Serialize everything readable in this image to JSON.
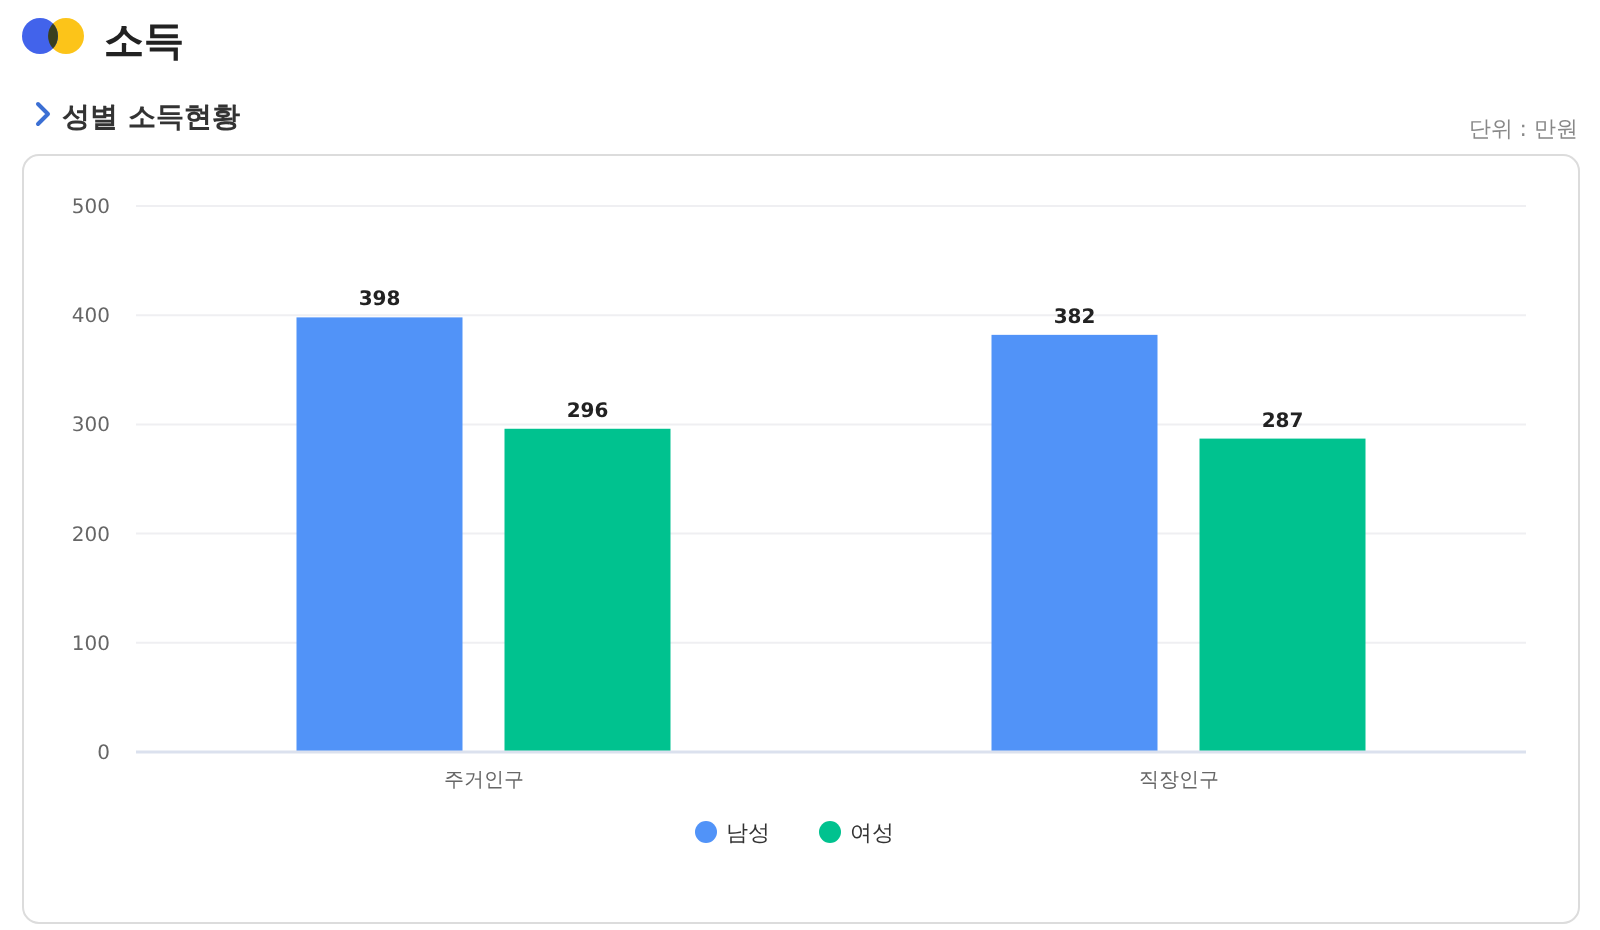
{
  "chart_data": {
    "type": "bar",
    "title": "소득",
    "subtitle": "성별 소득현황",
    "annotations": [
      "단위 : 만원"
    ],
    "categories": [
      "주거인구",
      "직장인구"
    ],
    "series": [
      {
        "name": "남성",
        "color": "#5193f8",
        "values": [
          398,
          382
        ]
      },
      {
        "name": "여성",
        "color": "#00c28f",
        "values": [
          296,
          287
        ]
      }
    ],
    "ylim": [
      0,
      500
    ],
    "yticks": [
      0,
      100,
      200,
      300,
      400,
      500
    ],
    "grid": "y",
    "data_labels": true,
    "legend": "bottom"
  }
}
